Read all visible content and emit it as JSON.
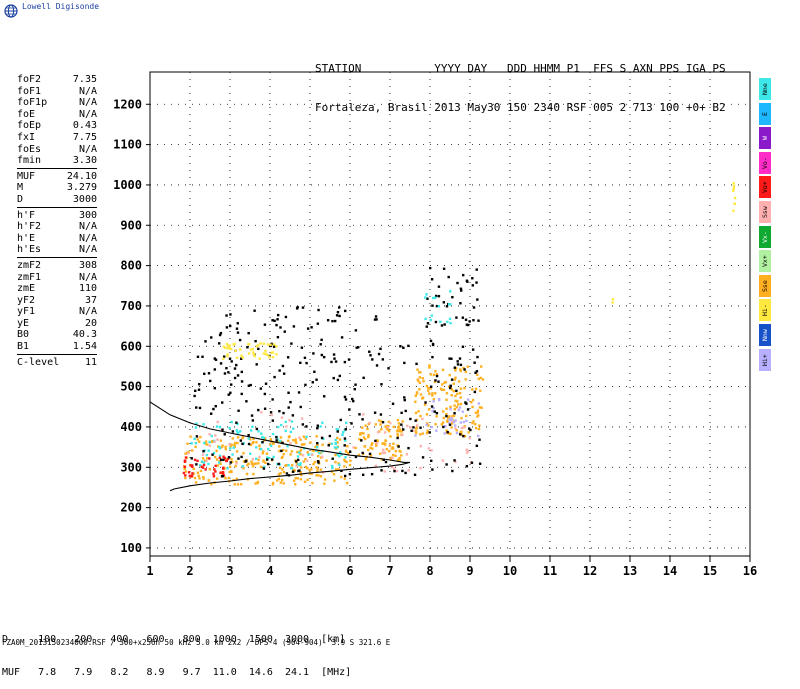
{
  "app": {
    "logo_text": "Lowell Digisonde",
    "logo_icon": "globe-icon"
  },
  "header": {
    "line1": "STATION           YYYY DAY   DDD HHMM P1  FFS S AXN PPS IGA PS",
    "line2": "Fortaleza, Brasil 2013 May30 150 2340 RSF 005 2 713 100 +0+ B2"
  },
  "parameters": {
    "group1": [
      {
        "k": "foF2",
        "v": "7.35"
      },
      {
        "k": "foF1",
        "v": "N/A"
      },
      {
        "k": "foF1p",
        "v": "N/A"
      },
      {
        "k": "foE",
        "v": "N/A"
      },
      {
        "k": "foEp",
        "v": "0.43"
      },
      {
        "k": "fxI",
        "v": "7.75"
      },
      {
        "k": "foEs",
        "v": "N/A"
      },
      {
        "k": "fmin",
        "v": "3.30"
      }
    ],
    "group2": [
      {
        "k": "MUF",
        "v": "24.10"
      },
      {
        "k": "M",
        "v": "3.279"
      },
      {
        "k": "D",
        "v": "3000"
      }
    ],
    "group3": [
      {
        "k": "h'F",
        "v": "300"
      },
      {
        "k": "h'F2",
        "v": "N/A"
      },
      {
        "k": "h'E",
        "v": "N/A"
      },
      {
        "k": "h'Es",
        "v": "N/A"
      }
    ],
    "group4": [
      {
        "k": "zmF2",
        "v": "308"
      },
      {
        "k": "zmF1",
        "v": "N/A"
      },
      {
        "k": "zmE",
        "v": "110"
      },
      {
        "k": "yF2",
        "v": "37"
      },
      {
        "k": "yF1",
        "v": "N/A"
      },
      {
        "k": "yE",
        "v": "20"
      },
      {
        "k": "B0",
        "v": "40.3"
      },
      {
        "k": "B1",
        "v": "1.54"
      }
    ],
    "group5": [
      {
        "k": "C-level",
        "v": "11"
      }
    ]
  },
  "legend": [
    {
      "label": "Nne",
      "color": "#3ee8e8"
    },
    {
      "label": "E",
      "color": "#1fb8ff"
    },
    {
      "label": "W",
      "color": "#8a19c9"
    },
    {
      "label": "Vo-",
      "color": "#ff2cc8"
    },
    {
      "label": "Vo+",
      "color": "#ff1a1a"
    },
    {
      "label": "Ssw",
      "color": "#ffb0b0"
    },
    {
      "label": "Vx-",
      "color": "#0fa830"
    },
    {
      "label": "Vx+",
      "color": "#b0f0a0"
    },
    {
      "label": "Sse",
      "color": "#ffb020"
    },
    {
      "label": "Hi-",
      "color": "#ffe840"
    },
    {
      "label": "Nnw",
      "color": "#1852c8"
    },
    {
      "label": "Hi+",
      "color": "#b8b0ff"
    }
  ],
  "distance_table": {
    "row1": "D     100   200   400   600   800  1000  1500  3000  [km]",
    "row2": "MUF   7.8   7.9   8.2   8.9   9.7  11.0  14.6  24.1  [MHz]"
  },
  "footer": "FZA0M_2013150234000.RSF / 300+x256h 50 kHz 5.0 km 2x2 / DPS-4 (904-904)  3.9 S 321.6 E",
  "chart_data": {
    "type": "scatter",
    "title": "",
    "xlabel": "",
    "ylabel": "",
    "xlim": [
      1,
      16
    ],
    "ylim": [
      80,
      1280
    ],
    "xticks": [
      1,
      2,
      3,
      4,
      5,
      6,
      7,
      8,
      9,
      10,
      11,
      12,
      13,
      14,
      15,
      16
    ],
    "yticks": [
      100,
      200,
      300,
      400,
      500,
      600,
      700,
      800,
      900,
      1000,
      1100,
      1200
    ],
    "grid": true,
    "profile_curve": {
      "name": "profile",
      "x": [
        1,
        1.5,
        2,
        2.5,
        3,
        3.5,
        4,
        4.5,
        5,
        5.5,
        6,
        6.5,
        7,
        7.35,
        7.5,
        7.3,
        7.0,
        6.5,
        6.0,
        5.5,
        5.0,
        4.5,
        4.0,
        3.5,
        3.0,
        2.5,
        2.0,
        1.6,
        1.5
      ],
      "y": [
        462,
        430,
        410,
        395,
        385,
        375,
        365,
        355,
        345,
        338,
        330,
        325,
        318,
        312,
        312,
        307,
        303,
        299,
        295,
        290,
        286,
        280,
        276,
        272,
        266,
        261,
        254,
        246,
        242
      ]
    },
    "echo_clusters": [
      {
        "name": "F layer O-trace",
        "x_range": [
          1.8,
          6.0
        ],
        "y_range": [
          260,
          380
        ],
        "color": "#ffb020",
        "count": 260
      },
      {
        "name": "F layer O-trace 2",
        "x_range": [
          6.1,
          7.3
        ],
        "y_range": [
          320,
          420
        ],
        "color": "#ffb020",
        "count": 90
      },
      {
        "name": "F layer high",
        "x_range": [
          7.6,
          9.3
        ],
        "y_range": [
          380,
          560
        ],
        "color": "#ffb020",
        "count": 150
      },
      {
        "name": "X-trace",
        "x_range": [
          2.0,
          6.0
        ],
        "y_range": [
          300,
          420
        ],
        "color": "#3ee8e8",
        "count": 110
      },
      {
        "name": "Vo+",
        "x_range": [
          1.8,
          3.0
        ],
        "y_range": [
          280,
          330
        ],
        "color": "#ff1a1a",
        "count": 40
      },
      {
        "name": "Ssw",
        "x_range": [
          1.8,
          9.0
        ],
        "y_range": [
          290,
          440
        ],
        "color": "#ffb0b0",
        "count": 70
      },
      {
        "name": "Hi+",
        "x_range": [
          7.6,
          9.2
        ],
        "y_range": [
          380,
          480
        ],
        "color": "#b8b0ff",
        "count": 30
      },
      {
        "name": "Black scatter",
        "x_range": [
          2.0,
          9.3
        ],
        "y_range": [
          280,
          620
        ],
        "color": "#000000",
        "count": 260
      },
      {
        "name": "Multi-hop",
        "x_range": [
          2.5,
          6.7
        ],
        "y_range": [
          560,
          700
        ],
        "color": "#000000",
        "count": 60
      },
      {
        "name": "Multi-hop yellow",
        "x_range": [
          2.8,
          4.2
        ],
        "y_range": [
          570,
          610
        ],
        "color": "#ffe840",
        "count": 45
      },
      {
        "name": "Triple-hop",
        "x_range": [
          7.8,
          9.2
        ],
        "y_range": [
          650,
          800
        ],
        "color": "#000000",
        "count": 40
      },
      {
        "name": "Triple-hop color",
        "x_range": [
          7.8,
          8.5
        ],
        "y_range": [
          660,
          740
        ],
        "color": "#3ee8e8",
        "count": 15
      },
      {
        "name": "Isolated high",
        "x_range": [
          15.55,
          15.6
        ],
        "y_range": [
          930,
          1010
        ],
        "color": "#ffe840",
        "count": 8
      },
      {
        "name": "Isolated mid",
        "x_range": [
          12.5,
          12.55
        ],
        "y_range": [
          710,
          720
        ],
        "color": "#ffe840",
        "count": 2
      }
    ]
  }
}
